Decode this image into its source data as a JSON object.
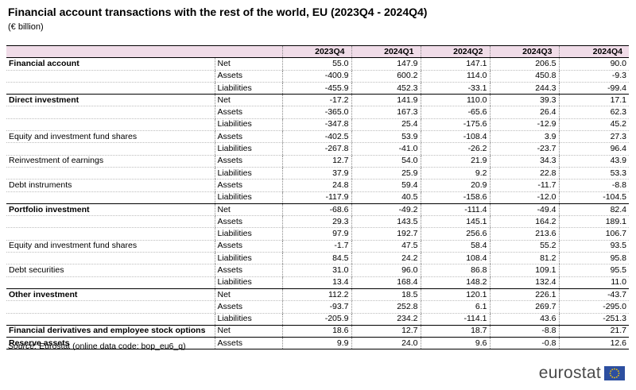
{
  "title": "Financial account transactions with the rest of the world, EU (2023Q4 - 2024Q4)",
  "subtitle": "(€ billion)",
  "columns": [
    "2023Q4",
    "2024Q1",
    "2024Q2",
    "2024Q3",
    "2024Q4"
  ],
  "rows": [
    {
      "label": "Financial account",
      "type": "Net",
      "values": [
        "55.0",
        "147.9",
        "147.1",
        "206.5",
        "90.0"
      ],
      "style": "grp"
    },
    {
      "label": "",
      "type": "Assets",
      "values": [
        "-400.9",
        "600.2",
        "114.0",
        "450.8",
        "-9.3"
      ]
    },
    {
      "label": "",
      "type": "Liabilities",
      "values": [
        "-455.9",
        "452.3",
        "-33.1",
        "244.3",
        "-99.4"
      ]
    },
    {
      "label": "Direct investment",
      "type": "Net",
      "values": [
        "-17.2",
        "141.9",
        "110.0",
        "39.3",
        "17.1"
      ],
      "style": "grp"
    },
    {
      "label": "",
      "type": "Assets",
      "values": [
        "-365.0",
        "167.3",
        "-65.6",
        "26.4",
        "62.3"
      ]
    },
    {
      "label": "",
      "type": "Liabilities",
      "values": [
        "-347.8",
        "25.4",
        "-175.6",
        "-12.9",
        "45.2"
      ]
    },
    {
      "label": "Equity and investment fund shares",
      "type": "Assets",
      "values": [
        "-402.5",
        "53.9",
        "-108.4",
        "3.9",
        "27.3"
      ],
      "style": "sub"
    },
    {
      "label": "",
      "type": "Liabilities",
      "values": [
        "-267.8",
        "-41.0",
        "-26.2",
        "-23.7",
        "96.4"
      ]
    },
    {
      "label": "Reinvestment of earnings",
      "type": "Assets",
      "values": [
        "12.7",
        "54.0",
        "21.9",
        "34.3",
        "43.9"
      ],
      "style": "sub"
    },
    {
      "label": "",
      "type": "Liabilities",
      "values": [
        "37.9",
        "25.9",
        "9.2",
        "22.8",
        "53.3"
      ]
    },
    {
      "label": "Debt instruments",
      "type": "Assets",
      "values": [
        "24.8",
        "59.4",
        "20.9",
        "-11.7",
        "-8.8"
      ],
      "style": "sub"
    },
    {
      "label": "",
      "type": "Liabilities",
      "values": [
        "-117.9",
        "40.5",
        "-158.6",
        "-12.0",
        "-104.5"
      ]
    },
    {
      "label": "Portfolio investment",
      "type": "Net",
      "values": [
        "-68.6",
        "-49.2",
        "-111.4",
        "-49.4",
        "82.4"
      ],
      "style": "grp"
    },
    {
      "label": "",
      "type": "Assets",
      "values": [
        "29.3",
        "143.5",
        "145.1",
        "164.2",
        "189.1"
      ]
    },
    {
      "label": "",
      "type": "Liabilities",
      "values": [
        "97.9",
        "192.7",
        "256.6",
        "213.6",
        "106.7"
      ]
    },
    {
      "label": "Equity and investment fund shares",
      "type": "Assets",
      "values": [
        "-1.7",
        "47.5",
        "58.4",
        "55.2",
        "93.5"
      ],
      "style": "sub"
    },
    {
      "label": "",
      "type": "Liabilities",
      "values": [
        "84.5",
        "24.2",
        "108.4",
        "81.2",
        "95.8"
      ]
    },
    {
      "label": "Debt securities",
      "type": "Assets",
      "values": [
        "31.0",
        "96.0",
        "86.8",
        "109.1",
        "95.5"
      ],
      "style": "sub"
    },
    {
      "label": "",
      "type": "Liabilities",
      "values": [
        "13.4",
        "168.4",
        "148.2",
        "132.4",
        "11.0"
      ]
    },
    {
      "label": "Other investment",
      "type": "Net",
      "values": [
        "112.2",
        "18.5",
        "120.1",
        "226.1",
        "-43.7"
      ],
      "style": "grp"
    },
    {
      "label": "",
      "type": "Assets",
      "values": [
        "-93.7",
        "252.8",
        "6.1",
        "269.7",
        "-295.0"
      ]
    },
    {
      "label": "",
      "type": "Liabilities",
      "values": [
        "-205.9",
        "234.2",
        "-114.1",
        "43.6",
        "-251.3"
      ]
    },
    {
      "label": "Financial derivatives and employee stock options",
      "type": "Net",
      "values": [
        "18.6",
        "12.7",
        "18.7",
        "-8.8",
        "21.7"
      ],
      "style": "grp"
    },
    {
      "label": "Reserve assets",
      "type": "Assets",
      "values": [
        "9.9",
        "24.0",
        "9.6",
        "-0.8",
        "12.6"
      ],
      "style": "grp"
    }
  ],
  "source": {
    "label": "Source:",
    "text": "Eurostat (online data code: bop_eu6_q)"
  },
  "logo": {
    "text": "eurostat",
    "flag_color": "#2d4fa0",
    "star_color": "#ffcc00"
  }
}
